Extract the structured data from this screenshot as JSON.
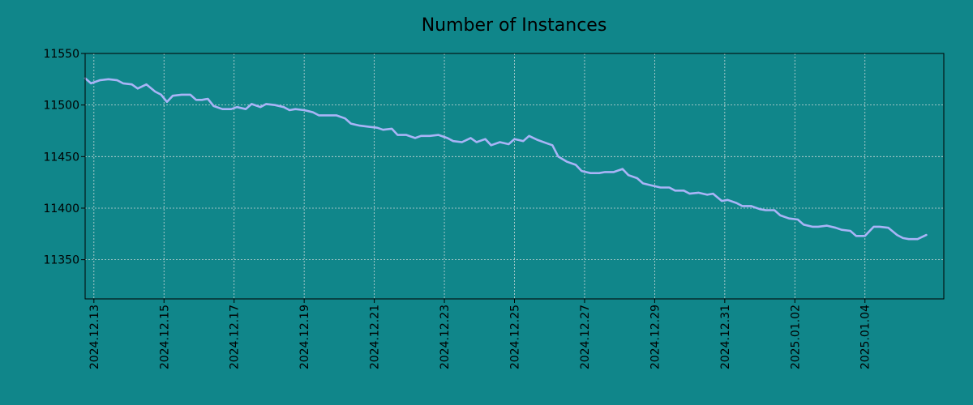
{
  "colors": {
    "background": "#10868a",
    "line": "#a9b4f7",
    "grid": "#c9d8d8",
    "axis": "#000000"
  },
  "chart_data": {
    "type": "line",
    "title": "Number of Instances",
    "xlabel": "",
    "ylabel": "",
    "grid": true,
    "legend": "none",
    "xlim": [
      "2024-12-12T18:00",
      "2025-01-06T06:00"
    ],
    "ylim": [
      11312,
      11550
    ],
    "x_tick_labels": [
      "2024.12.13",
      "2024.12.15",
      "2024.12.17",
      "2024.12.19",
      "2024.12.21",
      "2024.12.23",
      "2024.12.25",
      "2024.12.27",
      "2024.12.29",
      "2024.12.31",
      "2025.01.02",
      "2025.01.04"
    ],
    "x_ticks": [
      "2024-12-13",
      "2024-12-15",
      "2024-12-17",
      "2024-12-19",
      "2024-12-21",
      "2024-12-23",
      "2024-12-25",
      "2024-12-27",
      "2024-12-29",
      "2024-12-31",
      "2025-01-02",
      "2025-01-04"
    ],
    "y_ticks": [
      11350,
      11400,
      11450,
      11500,
      11550
    ],
    "series": [
      {
        "name": "",
        "points": [
          [
            "2024-12-12T18:00",
            11526
          ],
          [
            "2024-12-12T22:00",
            11521
          ],
          [
            "2024-12-13T04:00",
            11524
          ],
          [
            "2024-12-13T10:00",
            11525
          ],
          [
            "2024-12-13T16:00",
            11524
          ],
          [
            "2024-12-13T20:00",
            11521
          ],
          [
            "2024-12-14T02:00",
            11520
          ],
          [
            "2024-12-14T06:00",
            11516
          ],
          [
            "2024-12-14T12:00",
            11520
          ],
          [
            "2024-12-14T18:00",
            11513
          ],
          [
            "2024-12-14T22:00",
            11510
          ],
          [
            "2024-12-15T02:00",
            11503
          ],
          [
            "2024-12-15T06:00",
            11509
          ],
          [
            "2024-12-15T12:00",
            11510
          ],
          [
            "2024-12-15T18:00",
            11510
          ],
          [
            "2024-12-15T22:00",
            11505
          ],
          [
            "2024-12-16T02:00",
            11505
          ],
          [
            "2024-12-16T06:00",
            11506
          ],
          [
            "2024-12-16T10:00",
            11499
          ],
          [
            "2024-12-16T16:00",
            11496
          ],
          [
            "2024-12-16T22:00",
            11496
          ],
          [
            "2024-12-17T02:00",
            11498
          ],
          [
            "2024-12-17T08:00",
            11496
          ],
          [
            "2024-12-17T12:00",
            11501
          ],
          [
            "2024-12-17T18:00",
            11498
          ],
          [
            "2024-12-17T22:00",
            11501
          ],
          [
            "2024-12-18T04:00",
            11500
          ],
          [
            "2024-12-18T10:00",
            11498
          ],
          [
            "2024-12-18T14:00",
            11495
          ],
          [
            "2024-12-18T18:00",
            11496
          ],
          [
            "2024-12-19T00:00",
            11495
          ],
          [
            "2024-12-19T06:00",
            11493
          ],
          [
            "2024-12-19T10:00",
            11490
          ],
          [
            "2024-12-19T16:00",
            11490
          ],
          [
            "2024-12-19T22:00",
            11490
          ],
          [
            "2024-12-20T04:00",
            11487
          ],
          [
            "2024-12-20T08:00",
            11482
          ],
          [
            "2024-12-20T14:00",
            11480
          ],
          [
            "2024-12-20T20:00",
            11479
          ],
          [
            "2024-12-21T02:00",
            11478
          ],
          [
            "2024-12-21T06:00",
            11476
          ],
          [
            "2024-12-21T12:00",
            11477
          ],
          [
            "2024-12-21T16:00",
            11471
          ],
          [
            "2024-12-21T22:00",
            11471
          ],
          [
            "2024-12-22T04:00",
            11468
          ],
          [
            "2024-12-22T08:00",
            11470
          ],
          [
            "2024-12-22T14:00",
            11470
          ],
          [
            "2024-12-22T20:00",
            11471
          ],
          [
            "2024-12-23T02:00",
            11468
          ],
          [
            "2024-12-23T06:00",
            11465
          ],
          [
            "2024-12-23T12:00",
            11464
          ],
          [
            "2024-12-23T18:00",
            11468
          ],
          [
            "2024-12-23T22:00",
            11464
          ],
          [
            "2024-12-24T04:00",
            11467
          ],
          [
            "2024-12-24T08:00",
            11461
          ],
          [
            "2024-12-24T14:00",
            11464
          ],
          [
            "2024-12-24T20:00",
            11462
          ],
          [
            "2024-12-25T00:00",
            11467
          ],
          [
            "2024-12-25T06:00",
            11465
          ],
          [
            "2024-12-25T10:00",
            11470
          ],
          [
            "2024-12-25T16:00",
            11466
          ],
          [
            "2024-12-25T22:00",
            11463
          ],
          [
            "2024-12-26T02:00",
            11461
          ],
          [
            "2024-12-26T06:00",
            11450
          ],
          [
            "2024-12-26T12:00",
            11445
          ],
          [
            "2024-12-26T18:00",
            11442
          ],
          [
            "2024-12-26T22:00",
            11436
          ],
          [
            "2024-12-27T04:00",
            11434
          ],
          [
            "2024-12-27T10:00",
            11434
          ],
          [
            "2024-12-27T14:00",
            11435
          ],
          [
            "2024-12-27T20:00",
            11435
          ],
          [
            "2024-12-28T02:00",
            11438
          ],
          [
            "2024-12-28T06:00",
            11432
          ],
          [
            "2024-12-28T12:00",
            11429
          ],
          [
            "2024-12-28T16:00",
            11424
          ],
          [
            "2024-12-28T22:00",
            11422
          ],
          [
            "2024-12-29T04:00",
            11420
          ],
          [
            "2024-12-29T10:00",
            11420
          ],
          [
            "2024-12-29T14:00",
            11417
          ],
          [
            "2024-12-29T20:00",
            11417
          ],
          [
            "2024-12-30T00:00",
            11414
          ],
          [
            "2024-12-30T06:00",
            11415
          ],
          [
            "2024-12-30T12:00",
            11413
          ],
          [
            "2024-12-30T16:00",
            11414
          ],
          [
            "2024-12-30T22:00",
            11407
          ],
          [
            "2024-12-31T02:00",
            11408
          ],
          [
            "2024-12-31T08:00",
            11405
          ],
          [
            "2024-12-31T12:00",
            11402
          ],
          [
            "2024-12-31T18:00",
            11402
          ],
          [
            "2025-01-01T00:00",
            11399
          ],
          [
            "2025-01-01T04:00",
            11398
          ],
          [
            "2025-01-01T10:00",
            11398
          ],
          [
            "2025-01-01T14:00",
            11393
          ],
          [
            "2025-01-01T20:00",
            11390
          ],
          [
            "2025-01-02T02:00",
            11389
          ],
          [
            "2025-01-02T06:00",
            11384
          ],
          [
            "2025-01-02T12:00",
            11382
          ],
          [
            "2025-01-02T16:00",
            11382
          ],
          [
            "2025-01-02T22:00",
            11383
          ],
          [
            "2025-01-03T04:00",
            11381
          ],
          [
            "2025-01-03T08:00",
            11379
          ],
          [
            "2025-01-03T14:00",
            11378
          ],
          [
            "2025-01-03T18:00",
            11373
          ],
          [
            "2025-01-04T00:00",
            11373
          ],
          [
            "2025-01-04T06:00",
            11382
          ],
          [
            "2025-01-04T10:00",
            11382
          ],
          [
            "2025-01-04T16:00",
            11381
          ],
          [
            "2025-01-04T22:00",
            11374
          ],
          [
            "2025-01-05T02:00",
            11371
          ],
          [
            "2025-01-05T06:00",
            11370
          ],
          [
            "2025-01-05T12:00",
            11370
          ],
          [
            "2025-01-05T18:00",
            11374
          ]
        ]
      }
    ]
  }
}
